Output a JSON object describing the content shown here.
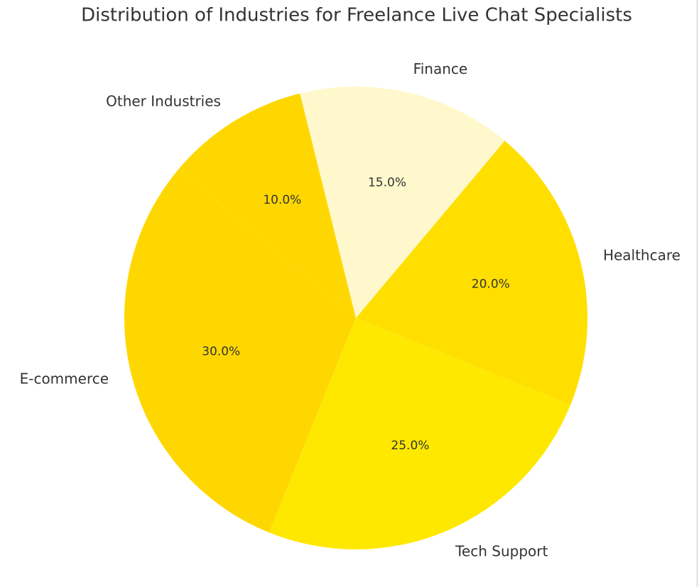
{
  "chart_data": {
    "type": "pie",
    "title": "Distribution of Industries for Freelance Live Chat Specialists",
    "categories": [
      "E-commerce",
      "Tech Support",
      "Healthcare",
      "Finance",
      "Other Industries"
    ],
    "values": [
      30,
      25,
      20,
      15,
      10
    ],
    "value_labels": [
      "30.0%",
      "25.0%",
      "20.0%",
      "15.0%",
      "10.0%"
    ],
    "colors": [
      "#ffd700",
      "#ffe800",
      "#ffdf00",
      "#fff8cc",
      "#ffd700"
    ]
  }
}
